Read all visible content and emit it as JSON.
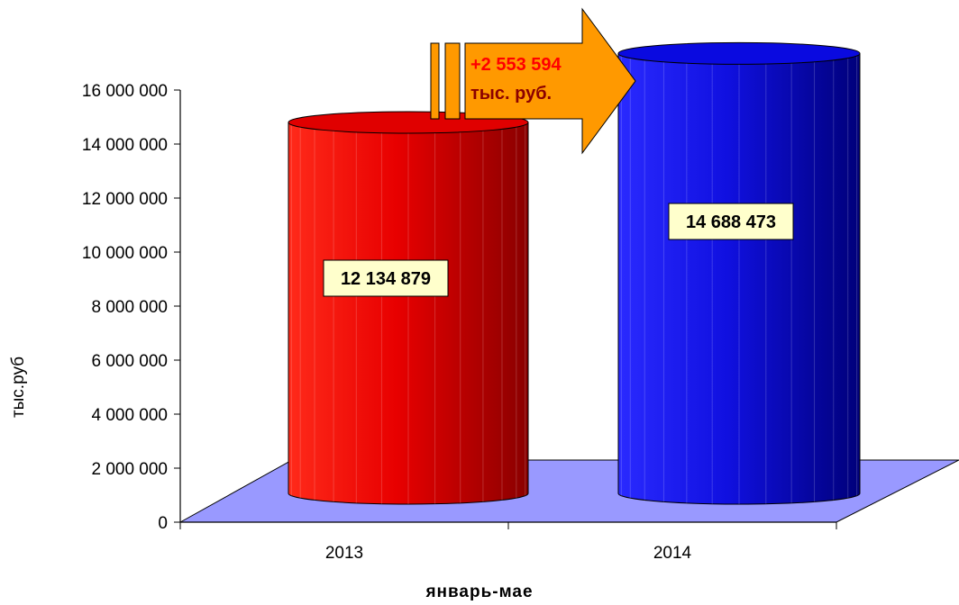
{
  "chart_data": {
    "type": "bar",
    "bar_shape": "cylinder",
    "categories": [
      "2013",
      "2014"
    ],
    "values": [
      12134879,
      14688473
    ],
    "data_labels": [
      "12 134 879",
      "14 688 473"
    ],
    "ylabel": "тыс.руб",
    "xlabel": "январь-мае",
    "ylim": [
      0,
      16000000
    ],
    "yticks": [
      "0",
      "2 000 000",
      "4 000 000",
      "6 000 000",
      "8 000 000",
      "10 000 000",
      "12 000 000",
      "14 000 000",
      "16 000 000"
    ],
    "bar_colors": [
      "#e00000",
      "#0a0ae0"
    ],
    "floor_color": "#9999ff",
    "grid": false,
    "annotation": {
      "line1": "+2 553 594",
      "line2": "тыс. руб.",
      "line1_color": "#ff0000",
      "line2_color": "#8b0000",
      "fill_color": "#ff9900"
    }
  }
}
